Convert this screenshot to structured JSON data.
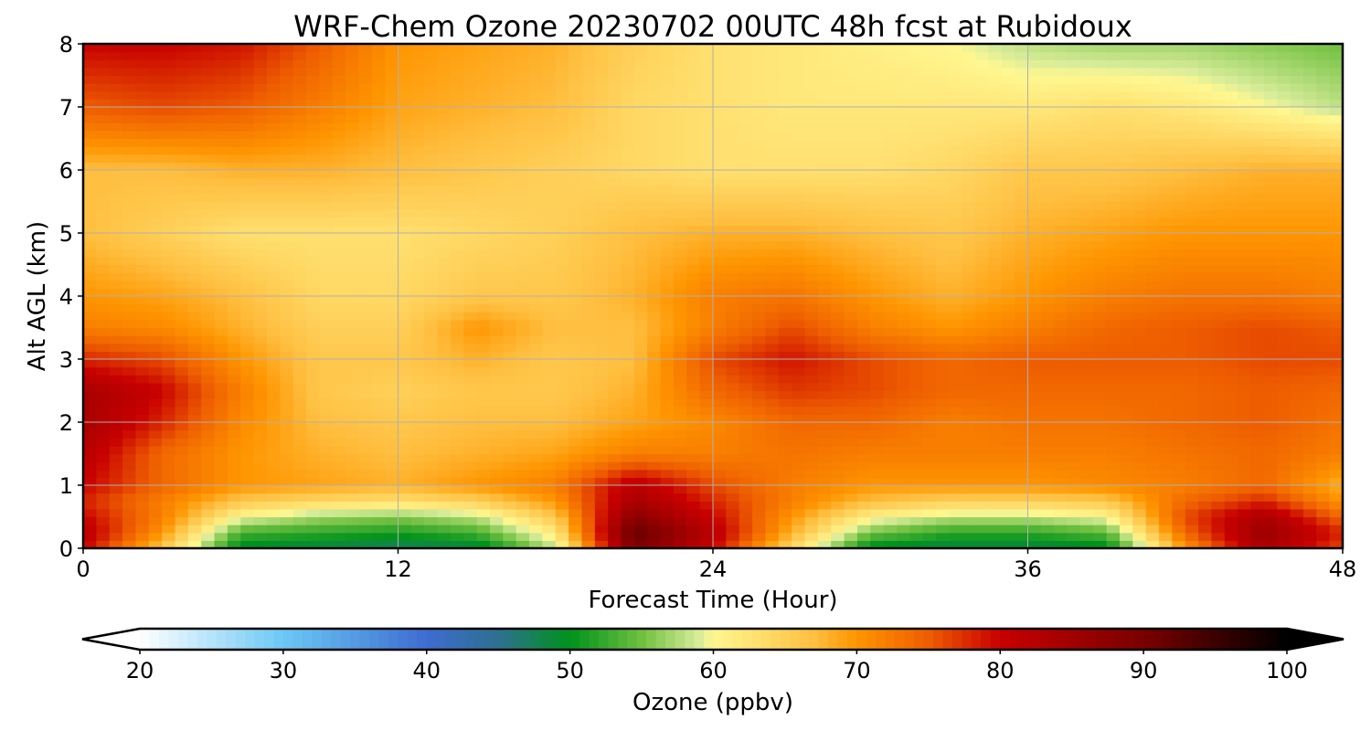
{
  "chart_data": {
    "type": "heatmap",
    "title": "WRF-Chem Ozone  20230702 00UTC 48h fcst at Rubidoux",
    "xlabel": "Forecast Time (Hour)",
    "ylabel": "Alt AGL (km)",
    "xlim": [
      0,
      48
    ],
    "ylim": [
      0,
      8
    ],
    "xticks": [
      0,
      12,
      24,
      36,
      48
    ],
    "yticks": [
      0,
      1,
      2,
      3,
      4,
      5,
      6,
      7,
      8
    ],
    "grid": true,
    "x": [
      0,
      3,
      6,
      9,
      12,
      15,
      18,
      21,
      24,
      27,
      30,
      33,
      36,
      39,
      42,
      45,
      48
    ],
    "y": [
      0,
      0.25,
      0.5,
      0.75,
      1,
      1.5,
      2,
      2.5,
      3,
      3.5,
      4,
      5,
      6,
      7,
      8
    ],
    "z": [
      [
        80,
        66,
        49,
        48,
        47,
        48,
        58,
        90,
        80,
        64,
        49,
        48,
        48,
        49,
        70,
        84,
        76
      ],
      [
        82,
        70,
        53,
        52,
        51,
        53,
        62,
        92,
        82,
        68,
        55,
        52,
        52,
        54,
        74,
        86,
        78
      ],
      [
        80,
        72,
        60,
        57,
        56,
        58,
        66,
        88,
        80,
        70,
        61,
        58,
        58,
        60,
        76,
        84,
        74
      ],
      [
        78,
        72,
        66,
        64,
        63,
        65,
        70,
        84,
        78,
        72,
        67,
        65,
        65,
        66,
        74,
        78,
        70
      ],
      [
        80,
        74,
        70,
        69,
        68,
        70,
        72,
        82,
        76,
        72,
        70,
        70,
        70,
        71,
        72,
        74,
        68
      ],
      [
        82,
        74,
        70,
        68,
        67,
        68,
        69,
        72,
        72,
        73,
        72,
        72,
        72,
        72,
        73,
        74,
        72
      ],
      [
        84,
        78,
        71,
        67,
        66,
        67,
        67,
        69,
        71,
        74,
        74,
        72,
        73,
        73,
        74,
        75,
        73
      ],
      [
        84,
        80,
        72,
        66,
        65,
        66,
        66,
        68,
        74,
        77,
        76,
        74,
        74,
        74,
        74,
        75,
        74
      ],
      [
        78,
        76,
        70,
        66,
        66,
        68,
        66,
        67,
        76,
        79,
        76,
        74,
        75,
        75,
        75,
        76,
        76
      ],
      [
        72,
        71,
        68,
        65,
        65,
        70,
        67,
        67,
        72,
        76,
        72,
        70,
        72,
        74,
        75,
        76,
        75
      ],
      [
        70,
        69,
        67,
        64,
        64,
        66,
        66,
        68,
        72,
        73,
        70,
        68,
        70,
        72,
        73,
        73,
        72
      ],
      [
        67,
        65,
        63,
        63,
        63,
        64,
        65,
        67,
        68,
        68,
        67,
        66,
        68,
        69,
        70,
        70,
        70
      ],
      [
        67,
        67,
        68,
        68,
        67,
        66,
        65,
        64,
        63,
        63,
        63,
        64,
        66,
        66,
        67,
        68,
        68
      ],
      [
        75,
        76,
        75,
        72,
        69,
        68,
        67,
        64,
        63,
        62,
        62,
        62,
        62,
        63,
        62,
        60,
        58
      ],
      [
        80,
        80,
        79,
        75,
        70,
        69,
        68,
        65,
        63,
        62,
        61,
        60,
        58,
        57,
        57,
        56,
        55
      ]
    ],
    "colorbar": {
      "label": "Ozone  (ppbv)",
      "min": 20,
      "max": 100,
      "extend": "both",
      "ticks": [
        20,
        30,
        40,
        50,
        60,
        70,
        80,
        90,
        100
      ],
      "colormap_stops": [
        {
          "v": 20,
          "c": "#ffffff"
        },
        {
          "v": 30,
          "c": "#6cc8f5"
        },
        {
          "v": 40,
          "c": "#3d6cd0"
        },
        {
          "v": 45,
          "c": "#2e7090"
        },
        {
          "v": 50,
          "c": "#00921c"
        },
        {
          "v": 55,
          "c": "#70c040"
        },
        {
          "v": 59,
          "c": "#d8ec9a"
        },
        {
          "v": 60,
          "c": "#fff790"
        },
        {
          "v": 63,
          "c": "#ffe070"
        },
        {
          "v": 67,
          "c": "#ffbf40"
        },
        {
          "v": 70,
          "c": "#ff9500"
        },
        {
          "v": 75,
          "c": "#ee5d00"
        },
        {
          "v": 80,
          "c": "#c80000"
        },
        {
          "v": 90,
          "c": "#7a0000"
        },
        {
          "v": 100,
          "c": "#000000"
        }
      ],
      "under_color": "#ffffff",
      "over_color": "#000000"
    }
  }
}
